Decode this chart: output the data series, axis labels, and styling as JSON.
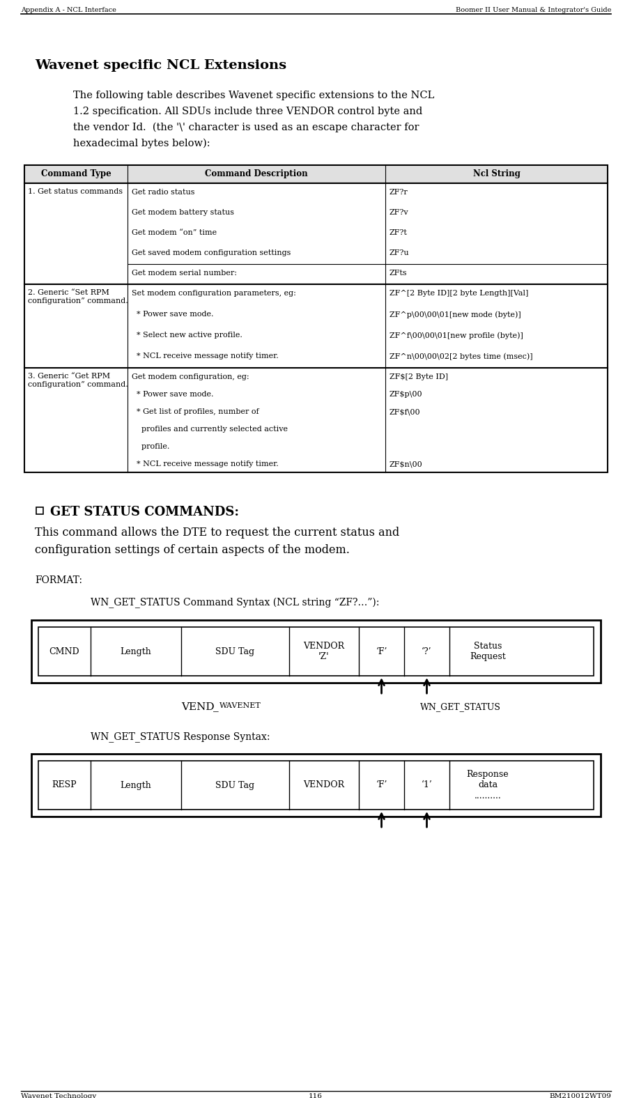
{
  "header_text_left": "Appendix A - NCL Interface",
  "header_text_right": "Boomer II User Manual & Integrator's Guide",
  "footer_text_left": "Wavenet Technology",
  "footer_text_center": "116",
  "footer_text_right": "BM210012WT09",
  "title": "Wavenet specific NCL Extensions",
  "intro_text": [
    "The following table describes Wavenet specific extensions to the NCL",
    "1.2 specification. All SDUs include three VENDOR control byte and",
    "the vendor Id.  (the '\\' character is used as an escape character for",
    "hexadecimal bytes below):"
  ],
  "table_headers": [
    "Command Type",
    "Command Description",
    "Ncl String"
  ],
  "row1_type": "1. Get status commands",
  "row1_descs": [
    "Get radio status",
    "Get modem battery status",
    "Get modem “on” time",
    "Get saved modem configuration settings",
    "Get modem serial number:"
  ],
  "row1_ncl": [
    "ZF?r",
    "ZF?v",
    "ZF?t",
    "ZF?u",
    "ZFts"
  ],
  "row2_type": "2. Generic “Set RPM\nconfiguration” command.",
  "row2_descs": [
    "Set modem configuration parameters, eg:",
    "  * Power save mode.",
    "  * Select new active profile.",
    "  * NCL receive message notify timer."
  ],
  "row2_ncl": [
    "ZF^[2 Byte ID][2 byte Length][Val]",
    "ZF^p\\00\\00\\01[new mode (byte)]",
    "ZF^f\\00\\00\\01[new profile (byte)]",
    "ZF^n\\00\\00\\02[2 bytes time (msec)]"
  ],
  "row3_type": "3. Generic “Get RPM\nconfiguration” command.",
  "row3_descs": [
    "Get modem configuration, eg:",
    "  * Power save mode.",
    "  * Get list of profiles, number of",
    "    profiles and currently selected active",
    "    profile.",
    "  * NCL receive message notify timer."
  ],
  "row3_ncl": [
    "ZF$[2 Byte ID]",
    "ZF$p\\00",
    "ZF$f\\00",
    "",
    "",
    "ZF$n\\00"
  ],
  "get_status_title": "GET STATUS COMMANDS:",
  "body1": "This command allows the DTE to request the current status and",
  "body2": "configuration settings of certain aspects of the modem.",
  "format_label": "FORMAT:",
  "cmd_syntax_label": "WN_GET_STATUS Command Syntax (NCL string “ZF?…”):",
  "cmd_cells": [
    "CMND",
    "Length",
    "SDU Tag",
    "VENDOR\n'Z'",
    "‘F’",
    "‘?’",
    "Status\nRequest"
  ],
  "cmd_cell_widths": [
    75,
    130,
    155,
    100,
    65,
    65,
    110
  ],
  "label_vend": "VEND",
  "label_wavenet": "WAVENET",
  "label_wn_get_status": "WN_GET_STATUS",
  "resp_syntax_label": "WN_GET_STATUS Response Syntax:",
  "resp_cells": [
    "RESP",
    "Length",
    "SDU Tag",
    "VENDOR",
    "‘F’",
    "‘1’",
    "Response\ndata\n.........."
  ],
  "resp_cell_widths": [
    75,
    130,
    155,
    100,
    65,
    65,
    110
  ],
  "bg_color": "#ffffff"
}
